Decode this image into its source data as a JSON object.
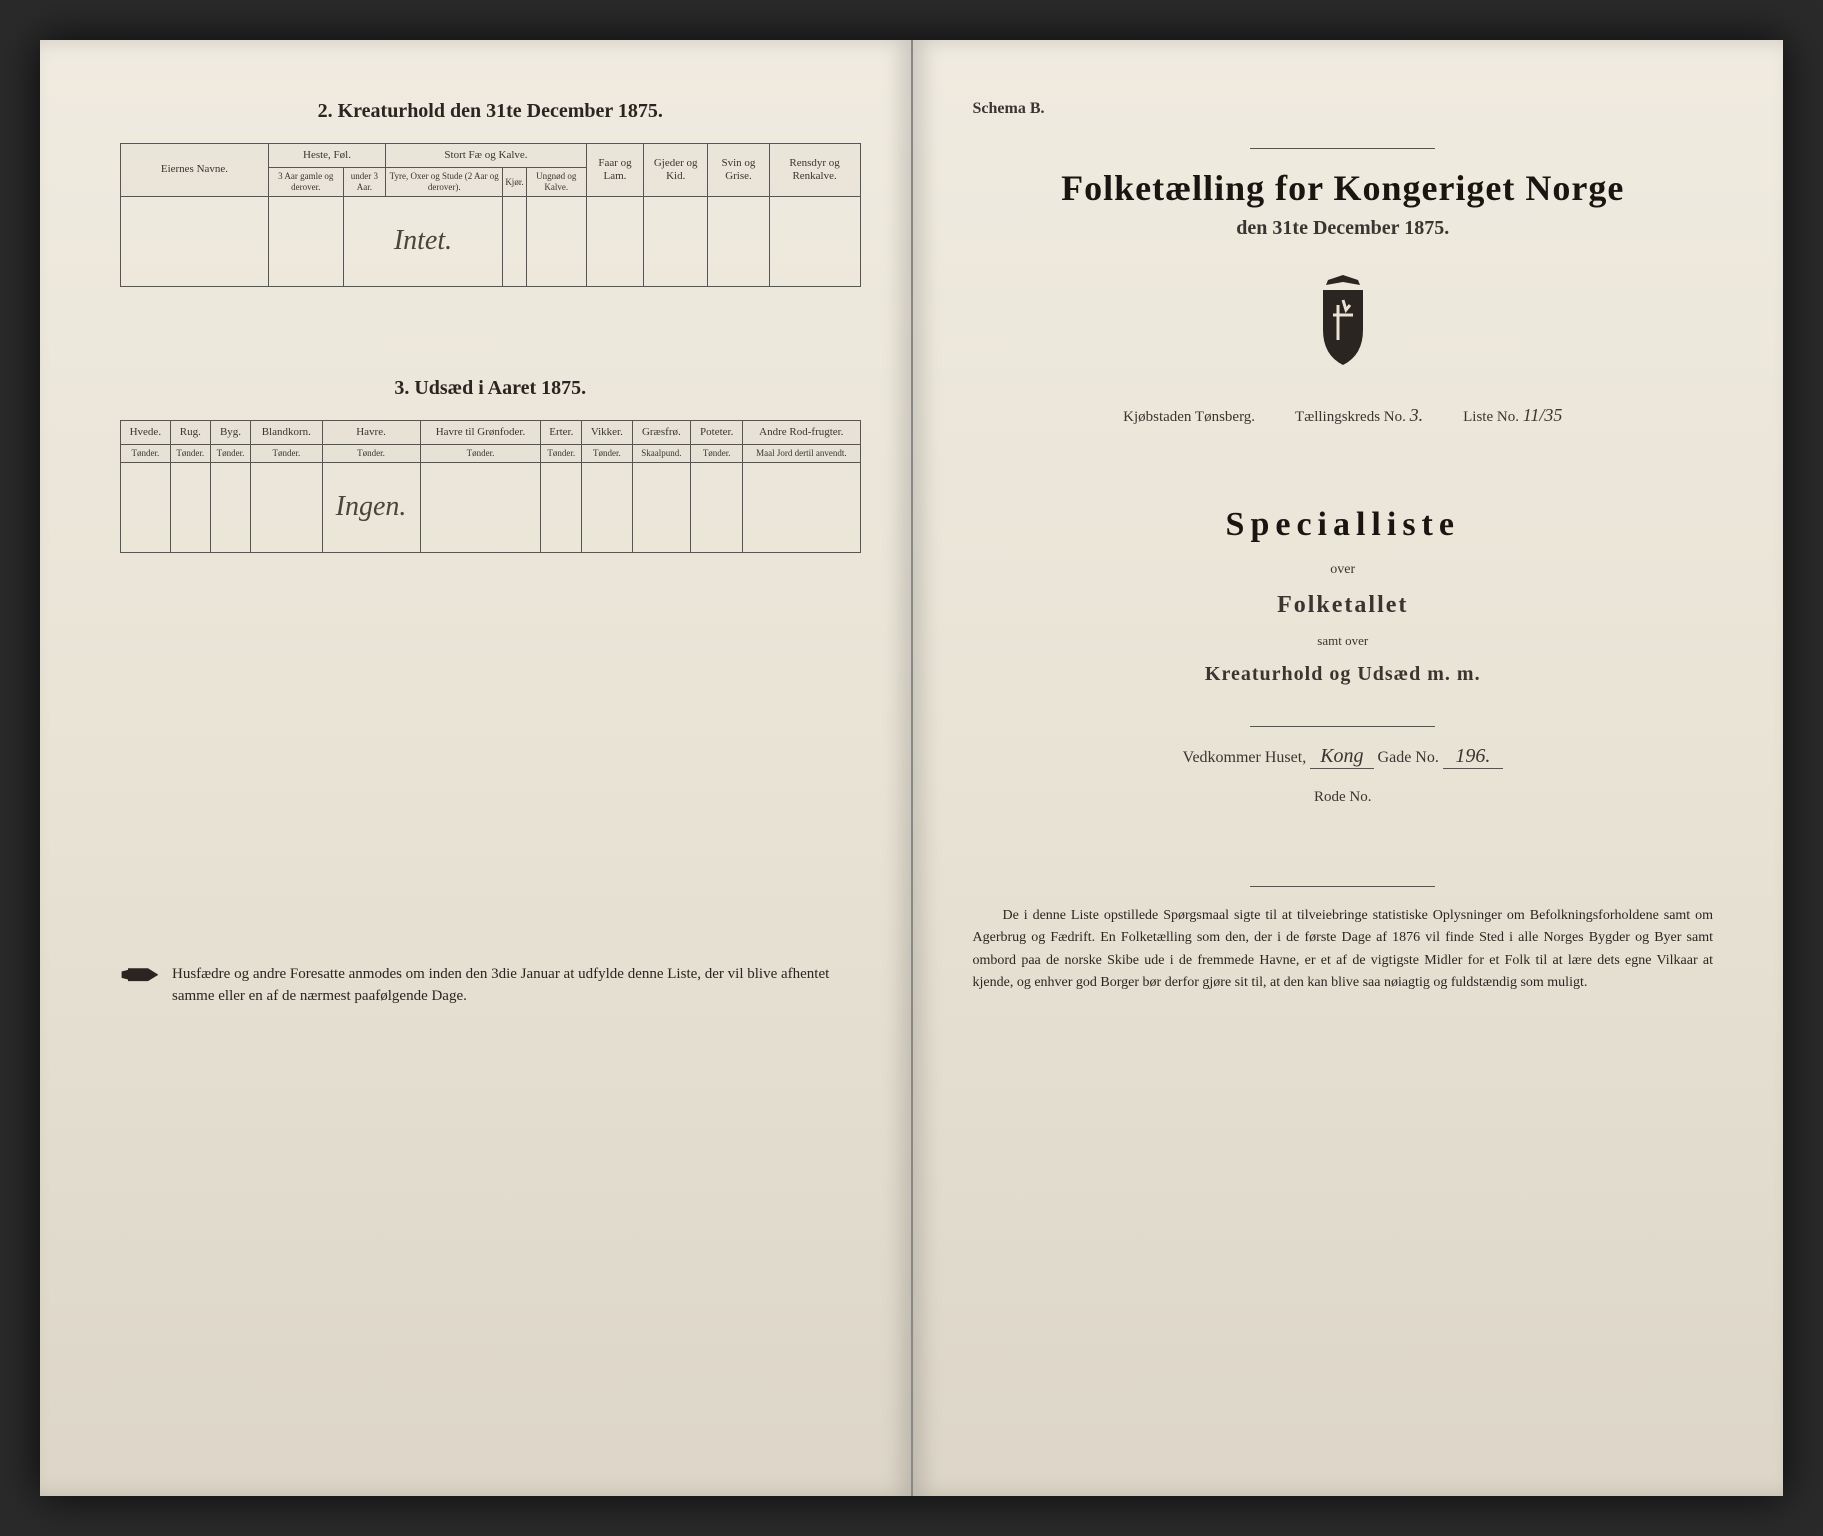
{
  "left": {
    "section2_title": "2. Kreaturhold den 31te December 1875.",
    "table2": {
      "col_eier": "Eiernes Navne.",
      "grp_heste": "Heste, Føl.",
      "grp_storfe": "Stort Fæ og Kalve.",
      "col_faar": "Faar og Lam.",
      "col_gjeder": "Gjeder og Kid.",
      "col_svin": "Svin og Grise.",
      "col_rensdyr": "Rensdyr og Renkalve.",
      "sub_heste1": "3 Aar gamle og derover.",
      "sub_heste2": "under 3 Aar.",
      "sub_fe1": "Tyre, Oxer og Stude (2 Aar og derover).",
      "sub_fe2": "Kjør.",
      "sub_fe3": "Ungnød og Kalve.",
      "handwritten": "Intet."
    },
    "section3_title": "3. Udsæd i Aaret 1875.",
    "table3": {
      "cols": [
        "Hvede.",
        "Rug.",
        "Byg.",
        "Blandkorn.",
        "Havre.",
        "Havre til Grønfoder.",
        "Erter.",
        "Vikker.",
        "Græsfrø.",
        "Poteter.",
        "Andre Rod-frugter."
      ],
      "units": [
        "Tønder.",
        "Tønder.",
        "Tønder.",
        "Tønder.",
        "Tønder.",
        "Tønder.",
        "Tønder.",
        "Tønder.",
        "Skaalpund.",
        "Tønder.",
        "Maal Jord dertil anvendt."
      ],
      "handwritten": "Ingen."
    },
    "footer": "Husfædre og andre Foresatte anmodes om inden den 3die Januar at udfylde denne Liste, der vil blive afhentet samme eller en af de nærmest paafølgende Dage."
  },
  "right": {
    "schema": "Schema B.",
    "main_title": "Folketælling for Kongeriget Norge",
    "subtitle": "den 31te December 1875.",
    "info": {
      "kjobstad_label": "Kjøbstaden Tønsberg.",
      "kreds_label": "Tællingskreds No.",
      "kreds_val": "3.",
      "liste_label": "Liste No.",
      "liste_val": "11/35"
    },
    "specialliste": "Specialliste",
    "over": "over",
    "folketallet": "Folketallet",
    "samt": "samt over",
    "kreatur": "Kreaturhold og Udsæd m. m.",
    "house": {
      "label1": "Vedkommer Huset,",
      "street": "Kong",
      "label2": "Gade No.",
      "num": "196."
    },
    "rode": "Rode No.",
    "para": "De i denne Liste opstillede Spørgsmaal sigte til at tilveiebringe statistiske Oplysninger om Befolkningsforholdene samt om Agerbrug og Fædrift. En Folketælling som den, der i de første Dage af 1876 vil finde Sted i alle Norges Bygder og Byer samt ombord paa de norske Skibe ude i de fremmede Havne, er et af de vigtigste Midler for et Folk til at lære dets egne Vilkaar at kjende, og enhver god Borger bør derfor gjøre sit til, at den kan blive saa nøiagtig og fuldstændig som muligt."
  },
  "colors": {
    "paper": "#e8e3d5",
    "ink": "#2a2520",
    "border": "#555555"
  }
}
